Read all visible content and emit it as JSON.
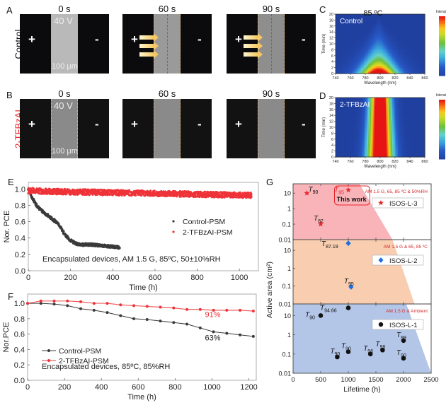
{
  "panel_labels": {
    "A": "A",
    "B": "B",
    "C": "C",
    "D": "D",
    "E": "E",
    "F": "F",
    "G": "G"
  },
  "image_rows": [
    {
      "row_label": "Control",
      "row_label_color": "#111111",
      "frames": [
        {
          "time": "0 s",
          "voltage": "40 V",
          "scale": "100 μm",
          "plus": "+",
          "minus": "-",
          "arrows": 0,
          "bg": "#0b0b0d",
          "strip": "#b9b9b9"
        },
        {
          "time": "60 s",
          "voltage": "",
          "scale": "",
          "plus": "+",
          "minus": "-",
          "arrows": 3,
          "bg": "#0b0b0d",
          "strip": "#9a9a9a"
        },
        {
          "time": "90 s",
          "voltage": "",
          "scale": "",
          "plus": "+",
          "minus": "-",
          "arrows": 3,
          "bg": "#0b0b0d",
          "strip": "#8e8e8e"
        }
      ]
    },
    {
      "row_label": "2-TFBzAI",
      "row_label_color": "#e8262b",
      "frames": [
        {
          "time": "0 s",
          "voltage": "40 V",
          "scale": "100 μm",
          "plus": "+",
          "minus": "-",
          "arrows": 0,
          "bg": "#121212",
          "strip": "#8a8a8a"
        },
        {
          "time": "60 s",
          "voltage": "",
          "scale": "",
          "plus": "+",
          "minus": "-",
          "arrows": 0,
          "bg": "#121212",
          "strip": "#8a8a8a"
        },
        {
          "time": "90 s",
          "voltage": "",
          "scale": "",
          "plus": "+",
          "minus": "-",
          "arrows": 0,
          "bg": "#121212",
          "strip": "#8a8a8a"
        }
      ]
    }
  ],
  "chart_data": [
    {
      "id": "C",
      "type": "heatmap",
      "title": "85 ºC",
      "annotation": "Control",
      "xlabel": "Wavelength (nm)",
      "ylabel": "Time (min)",
      "xlim": [
        740,
        860
      ],
      "ylim": [
        0,
        20
      ],
      "xticks": [
        "740",
        "760",
        "780",
        "800",
        "820",
        "840",
        "860"
      ],
      "yticks": [
        "0",
        "2",
        "4",
        "6",
        "8",
        "10",
        "12",
        "14",
        "16",
        "18",
        "20"
      ],
      "colorbar": {
        "label": "Intensity",
        "range": [
          200,
          1200
        ],
        "ticks": [
          "200.0",
          "400.0",
          "600.0",
          "800.0",
          "1000",
          "1200"
        ]
      },
      "model": {
        "peak_wavelength": 798,
        "peak_intensity": 1250,
        "base": 200,
        "width_at_t0": 22,
        "decay": "cone narrowing to zero at ~19 min"
      }
    },
    {
      "id": "D",
      "type": "heatmap",
      "title": "",
      "annotation": "2-TFBzAI",
      "xlabel": "Wavelength (nm)",
      "ylabel": "Time (min)",
      "xlim": [
        740,
        860
      ],
      "ylim": [
        0,
        20
      ],
      "xticks": [
        "740",
        "760",
        "780",
        "800",
        "820",
        "840",
        "860"
      ],
      "yticks": [
        "0",
        "2",
        "4",
        "6",
        "8",
        "10",
        "12",
        "14",
        "16",
        "18",
        "20"
      ],
      "colorbar": {
        "label": "Intensity",
        "range": [
          200,
          1200
        ],
        "ticks": [
          "200.0",
          "400.0",
          "600.0",
          "800.0",
          "1000",
          "1200"
        ]
      },
      "model": {
        "peak_wavelength": 800,
        "peak_intensity": 1500,
        "base": 200,
        "width_at_t0": 17,
        "width_at_t20": 13
      }
    },
    {
      "id": "E",
      "type": "scatter",
      "xlabel": "Time (h)",
      "ylabel": "Nor. PCE",
      "xlim": [
        0,
        1090
      ],
      "ylim": [
        0,
        1.08
      ],
      "xticks": [
        "0",
        "200",
        "400",
        "600",
        "800",
        "1000"
      ],
      "yticks": [
        "0.0",
        "0.2",
        "0.4",
        "0.6",
        "0.8",
        "1.0"
      ],
      "annotation": "Encapsulated devices, AM 1.5 G, 85ºC, 50±10%RH",
      "legend_position": "center-right",
      "series": [
        {
          "name": "Control-PSM",
          "color": "#3a3a3a",
          "x": [
            0,
            10,
            20,
            40,
            60,
            80,
            100,
            120,
            140,
            160,
            180,
            200,
            220,
            240,
            260,
            300,
            340,
            380,
            420,
            435
          ],
          "y": [
            1.0,
            0.94,
            0.88,
            0.8,
            0.74,
            0.7,
            0.66,
            0.62,
            0.58,
            0.5,
            0.42,
            0.37,
            0.34,
            0.32,
            0.32,
            0.32,
            0.31,
            0.3,
            0.29,
            0.28
          ]
        },
        {
          "name": "2-TFBzAI-PSM",
          "color": "#ee3338",
          "x": [
            0,
            100,
            200,
            300,
            400,
            500,
            600,
            700,
            800,
            900,
            1000,
            1060
          ],
          "y": [
            0.98,
            0.97,
            0.965,
            0.96,
            0.955,
            0.95,
            0.945,
            0.94,
            0.935,
            0.93,
            0.925,
            0.92
          ]
        }
      ]
    },
    {
      "id": "F",
      "type": "line",
      "xlabel": "Time (h)",
      "ylabel": "Nor.PCE",
      "xlim": [
        0,
        1240
      ],
      "ylim": [
        0,
        1.12
      ],
      "xticks": [
        "0",
        "200",
        "400",
        "600",
        "800",
        "1000",
        "1200"
      ],
      "yticks": [
        "0.0",
        "0.2",
        "0.4",
        "0.6",
        "0.8",
        "1.0"
      ],
      "annotation": "Encapsulated devices, 85ºC, 85%RH",
      "legend_position": "lower-left",
      "value_labels": [
        {
          "text": "91%",
          "series": "2-TFBzAI-PSM",
          "color": "#ee3338"
        },
        {
          "text": "63%",
          "series": "Control-PSM",
          "color": "#222222"
        }
      ],
      "series": [
        {
          "name": "Control-PSM",
          "color": "#3a3a3a",
          "x": [
            0,
            72,
            144,
            216,
            288,
            360,
            432,
            504,
            576,
            648,
            720,
            792,
            864,
            936,
            1008,
            1080,
            1152,
            1224
          ],
          "y": [
            1.0,
            1.0,
            0.99,
            0.97,
            0.93,
            0.91,
            0.88,
            0.84,
            0.8,
            0.79,
            0.77,
            0.75,
            0.73,
            0.68,
            0.63,
            0.61,
            0.59,
            0.57
          ]
        },
        {
          "name": "2-TFBzAI-PSM",
          "color": "#ee3338",
          "x": [
            0,
            72,
            144,
            216,
            288,
            360,
            432,
            504,
            576,
            648,
            720,
            792,
            864,
            936,
            1008,
            1080,
            1152,
            1224
          ],
          "y": [
            1.0,
            1.03,
            1.03,
            1.03,
            1.02,
            1.0,
            1.0,
            0.98,
            0.97,
            0.96,
            0.95,
            0.94,
            0.92,
            0.92,
            0.91,
            0.91,
            0.91,
            0.9
          ]
        }
      ]
    },
    {
      "id": "G",
      "type": "scatter",
      "xlabel": "Lifetime (h)",
      "ylabel": "Active area (cm²)",
      "xlim": [
        0,
        2500
      ],
      "ylim_log": [
        0.01,
        40
      ],
      "xticks": [
        "0",
        "500",
        "1000",
        "1500",
        "2000",
        "2500"
      ],
      "yticks": [
        "0.01",
        "0.1",
        "1",
        "10"
      ],
      "sub_panels": [
        {
          "name": "ISOS-L-3",
          "marker": "star",
          "color": "#e8262b",
          "bg": "#f8b4b8",
          "condition": "AM 1.5 G, 65, 85 ºC & 50%RH",
          "shade_top_x": 1200,
          "shade_bottom_x": 1800,
          "highlight": {
            "label": "This work",
            "color": "#e8262b"
          },
          "points": [
            {
              "x": 250,
              "y": 10,
              "label": "T",
              "sub": "90",
              "label_color": "#111111"
            },
            {
              "x": 1000,
              "y": 16,
              "label": "T",
              "sub": "95",
              "label_color": "#e8262b"
            },
            {
              "x": 500,
              "y": 0.1,
              "label": "T",
              "sub": "82",
              "label_color": "#111111"
            }
          ]
        },
        {
          "name": "ISOS-L-2",
          "marker": "diamond",
          "color": "#1f6fe0",
          "bg": "#f8cdb0",
          "condition": "AM 1.5 G & 65, 85 ºC",
          "shade_top_x": 1800,
          "shade_bottom_x": 2200,
          "points": [
            {
              "x": 1000,
              "y": 25,
              "label": "T",
              "sub": "87.19",
              "label_color": "#111111"
            },
            {
              "x": 1050,
              "y": 0.09,
              "label": "T",
              "sub": "95",
              "label_color": "#111111"
            }
          ]
        },
        {
          "name": "ISOS-L-1",
          "marker": "circle",
          "color": "#111111",
          "bg": "#b4c6e8",
          "condition": "AM 1.5 G & Ambient",
          "shade_top_x": 2050,
          "shade_bottom_x": 2500,
          "points": [
            {
              "x": 500,
              "y": 10,
              "label": "T",
              "sub": "90",
              "label_color": "#111111"
            },
            {
              "x": 1000,
              "y": 25,
              "label": "T",
              "sub": "94.66",
              "label_color": "#111111"
            },
            {
              "x": 800,
              "y": 0.07,
              "label": "T",
              "sub": "90",
              "label_color": "#111111"
            },
            {
              "x": 1000,
              "y": 0.13,
              "label": "T",
              "sub": "90",
              "label_color": "#111111"
            },
            {
              "x": 1400,
              "y": 0.1,
              "label": "T",
              "sub": "96",
              "label_color": "#111111"
            },
            {
              "x": 1620,
              "y": 0.16,
              "label": "T",
              "sub": "98",
              "label_color": "#111111"
            },
            {
              "x": 2000,
              "y": 0.5,
              "label": "T",
              "sub": "99",
              "label_color": "#111111"
            },
            {
              "x": 2000,
              "y": 0.06,
              "label": "T",
              "sub": "90",
              "label_color": "#111111"
            }
          ]
        }
      ]
    }
  ]
}
